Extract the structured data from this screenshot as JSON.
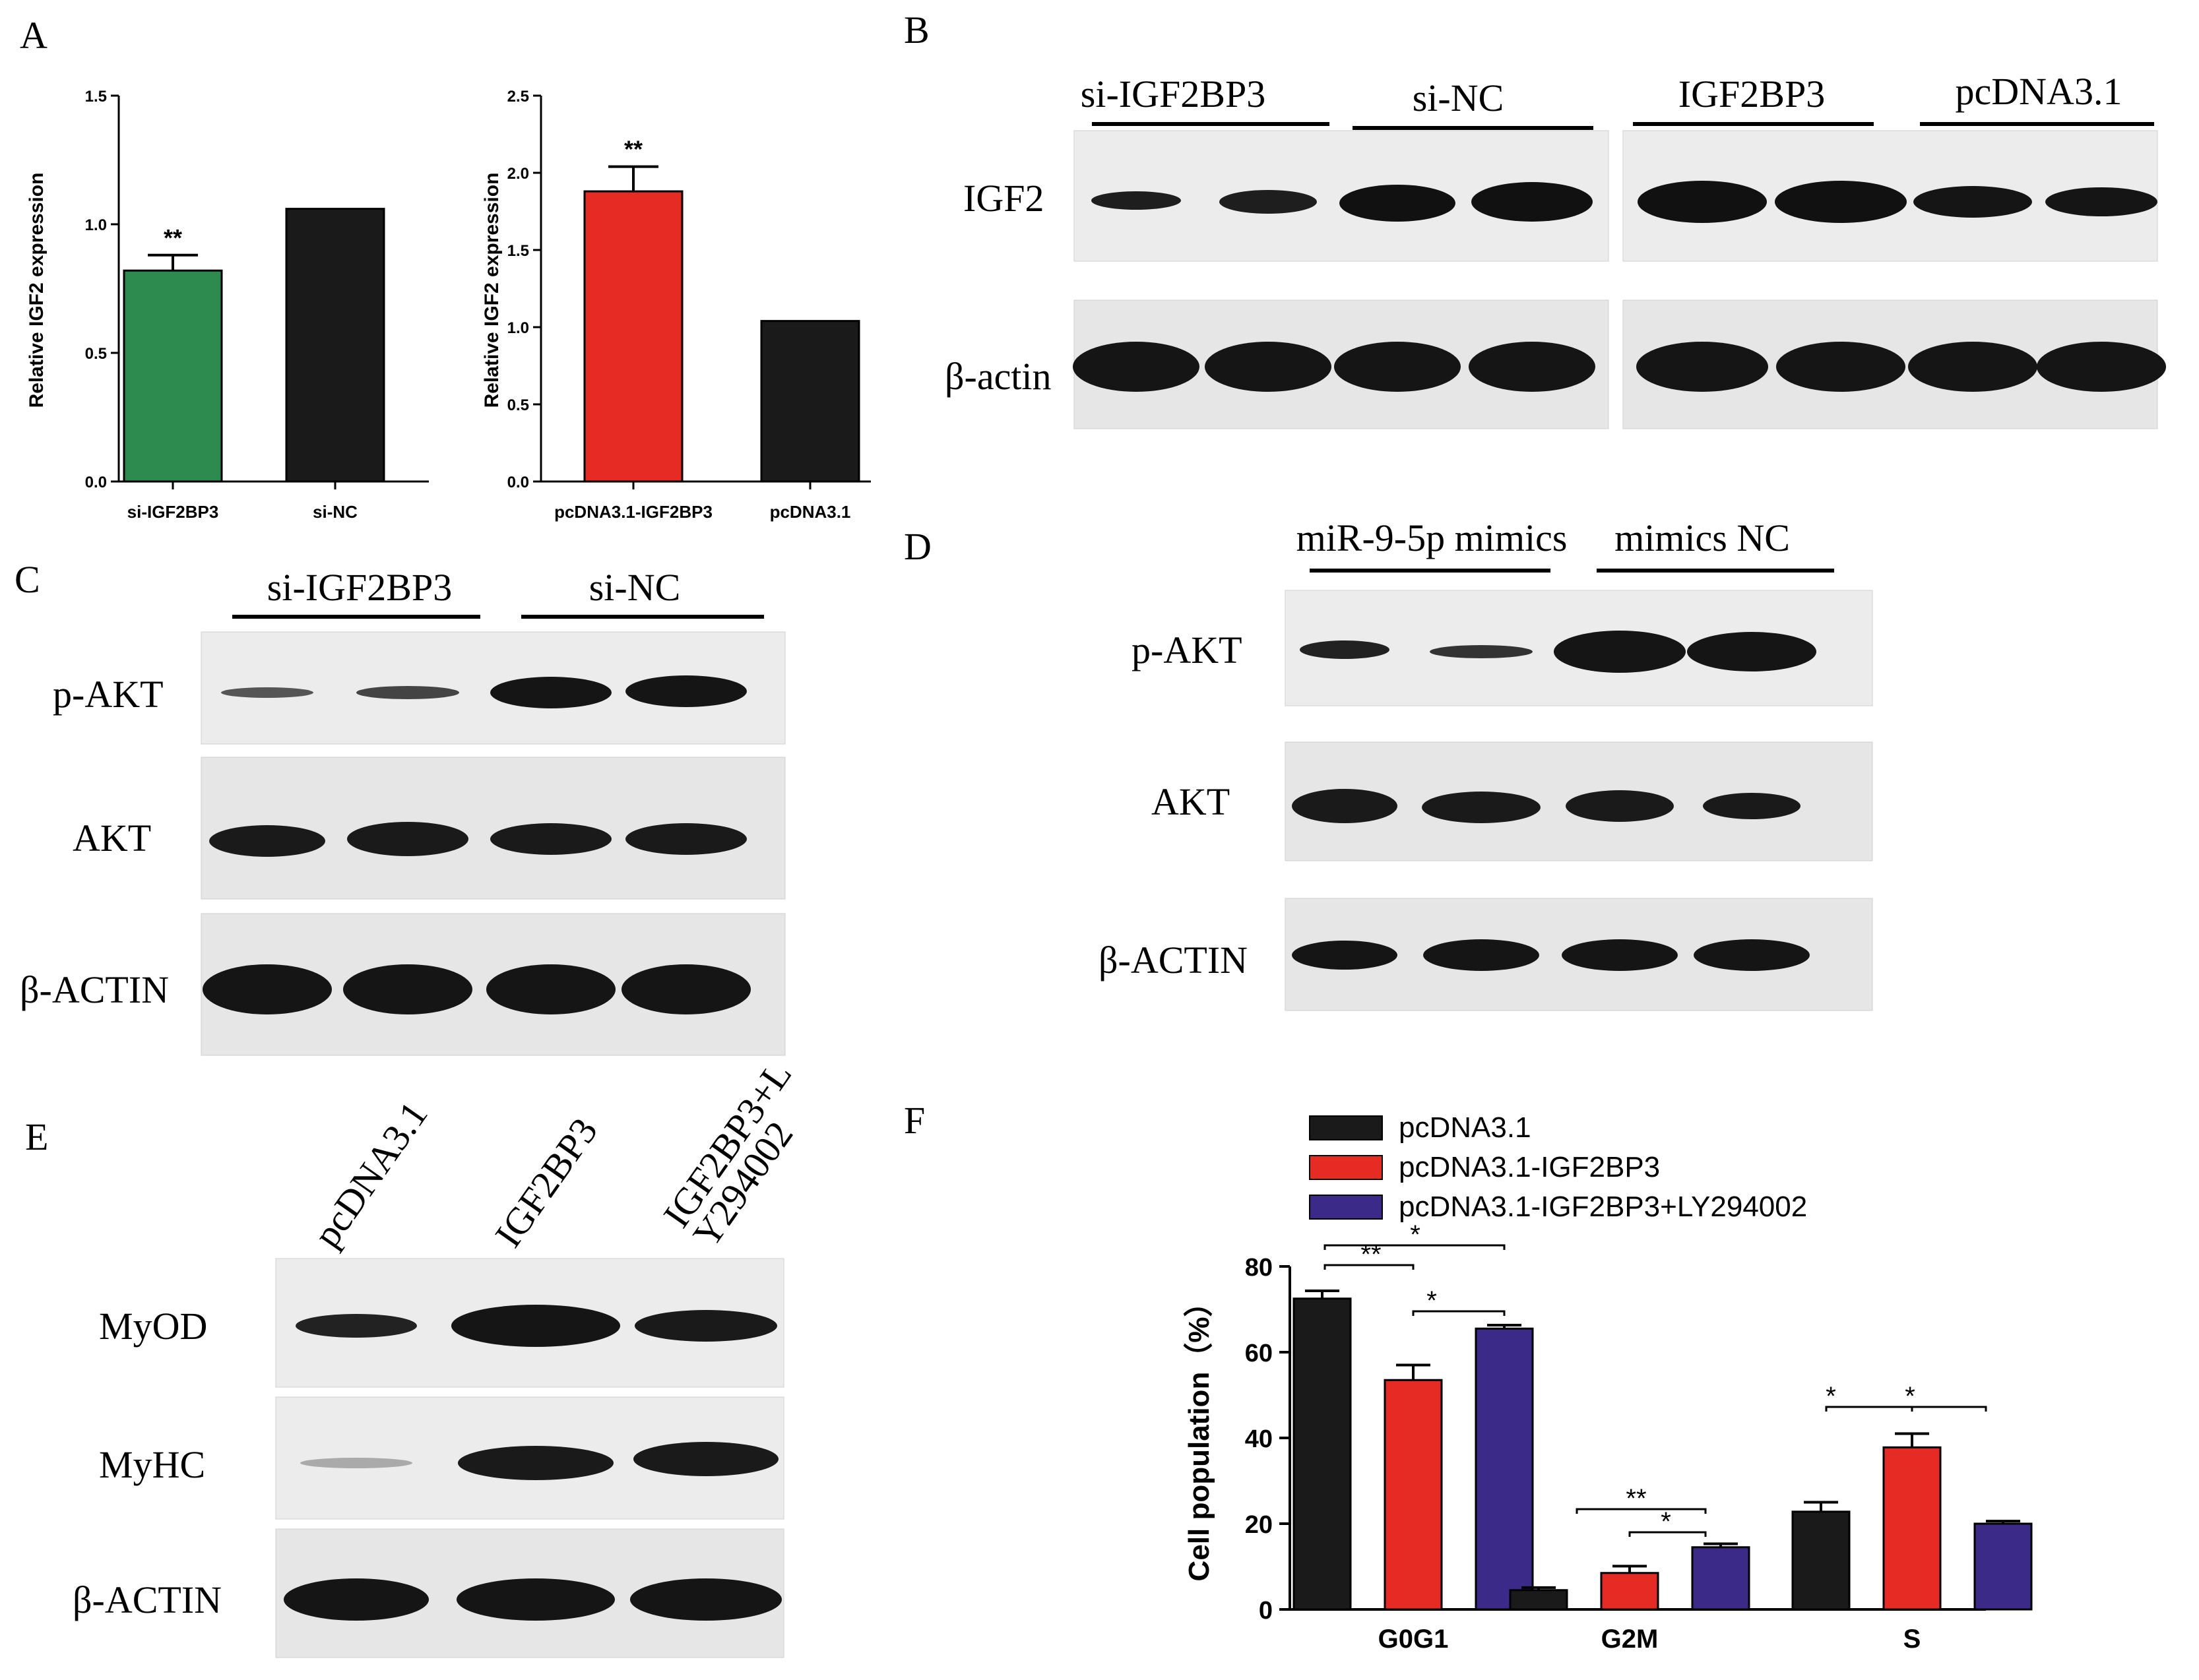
{
  "panels": {
    "a": "A",
    "b": "B",
    "c": "C",
    "d": "D",
    "e": "E",
    "f": "F"
  },
  "colors": {
    "green": "#2e8b4f",
    "red": "#e62a24",
    "purple": "#3c2a88",
    "black": "#1a1a1a"
  },
  "chart_data": [
    {
      "panel": "A-left",
      "type": "bar",
      "categories": [
        "si-IGF2BP3",
        "si-NC"
      ],
      "values": [
        0.82,
        1.06
      ],
      "errors": [
        0.06,
        0
      ],
      "significance": [
        "**",
        ""
      ],
      "ylabel": "Relative IGF2 expression",
      "ylim": [
        0,
        1.5
      ],
      "yticks": [
        "0.0",
        "0.5",
        "1.0",
        "1.5"
      ],
      "colors": [
        "#2e8b4f",
        "#1a1a1a"
      ]
    },
    {
      "panel": "A-right",
      "type": "bar",
      "categories": [
        "pcDNA3.1-IGF2BP3",
        "pcDNA3.1"
      ],
      "values": [
        1.88,
        1.04
      ],
      "errors": [
        0.16,
        0
      ],
      "significance": [
        "**",
        ""
      ],
      "ylabel": "Relative IGF2 expression",
      "ylim": [
        0,
        2.5
      ],
      "yticks": [
        "0.0",
        "0.5",
        "1.0",
        "1.5",
        "2.0",
        "2.5"
      ],
      "colors": [
        "#e62a24",
        "#1a1a1a"
      ]
    },
    {
      "panel": "F",
      "type": "bar",
      "categories": [
        "G0G1",
        "G2M",
        "S"
      ],
      "ylabel": "Cell population（%）",
      "ylim": [
        0,
        80
      ],
      "yticks": [
        "0",
        "20",
        "40",
        "60",
        "80"
      ],
      "legend": "top-left",
      "series": [
        {
          "name": "pcDNA3.1",
          "color": "#1a1a1a",
          "values": [
            72.5,
            4.5,
            22.8
          ],
          "errors": [
            1.8,
            0.6,
            2.2
          ]
        },
        {
          "name": "pcDNA3.1-IGF2BP3",
          "color": "#e62a24",
          "values": [
            53.5,
            8.5,
            37.8
          ],
          "errors": [
            3.5,
            1.6,
            3.2
          ]
        },
        {
          "name": "pcDNA3.1-IGF2BP3+LY294002",
          "color": "#3c2a88",
          "values": [
            65.5,
            14.5,
            20.0
          ],
          "errors": [
            0.8,
            0.8,
            0.6
          ]
        }
      ],
      "brackets": [
        {
          "label": "*"
        },
        {
          "label": "**"
        },
        {
          "label": "*"
        },
        {
          "label": "**"
        },
        {
          "label": "*"
        },
        {
          "label": "*"
        },
        {
          "label": "*"
        }
      ]
    }
  ],
  "blots": {
    "b": {
      "groups": [
        "si-IGF2BP3",
        "si-NC",
        "IGF2BP3",
        "pcDNA3.1"
      ],
      "rows": [
        "IGF2",
        "β-actin"
      ]
    },
    "c": {
      "groups": [
        "si-IGF2BP3",
        "si-NC"
      ],
      "rows": [
        "p-AKT",
        "AKT",
        "β-ACTIN"
      ]
    },
    "d": {
      "groups": [
        "miR-9-5p mimics",
        "mimics NC"
      ],
      "rows": [
        "p-AKT",
        "AKT",
        "β-ACTIN"
      ]
    },
    "e": {
      "lanes": [
        "pcDNA3.1",
        "IGF2BP3",
        "IGF2BP3+L",
        "Y294002"
      ],
      "rows": [
        "MyOD",
        "MyHC",
        "β-ACTIN"
      ]
    }
  }
}
